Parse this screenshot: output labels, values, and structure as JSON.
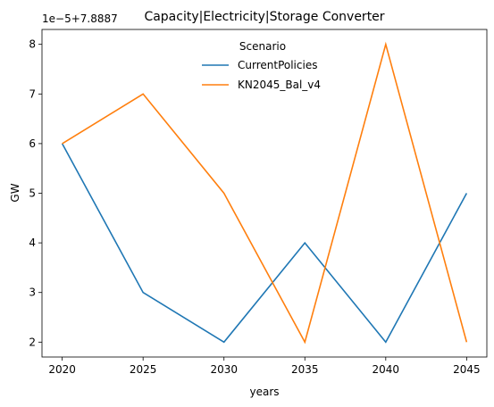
{
  "chart_data": {
    "type": "line",
    "title": "Capacity|Electricity|Storage Converter",
    "xlabel": "years",
    "ylabel": "GW",
    "offset_text": "1e−5+7.8887",
    "x": [
      2020,
      2025,
      2030,
      2035,
      2040,
      2045
    ],
    "x_ticks": [
      "2020",
      "2025",
      "2030",
      "2035",
      "2040",
      "2045"
    ],
    "y_ticks": [
      "2",
      "3",
      "4",
      "5",
      "6",
      "7",
      "8"
    ],
    "xlim": [
      2018.75,
      2046.25
    ],
    "ylim": [
      1.7,
      8.3
    ],
    "grid": false,
    "legend": {
      "title": "Scenario",
      "placement": "upper center"
    },
    "series": [
      {
        "name": "CurrentPolicies",
        "color": "#1f77b4",
        "values": [
          6,
          3,
          2,
          4,
          2,
          5
        ]
      },
      {
        "name": "KN2045_Bal_v4",
        "color": "#ff7f0e",
        "values": [
          6,
          7,
          5,
          2,
          8,
          2
        ]
      }
    ]
  }
}
